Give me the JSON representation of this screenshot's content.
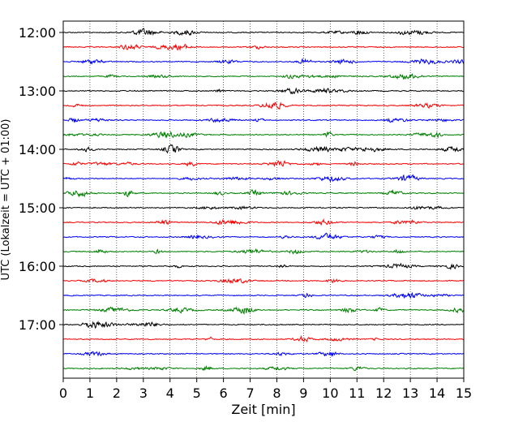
{
  "chart_data": {
    "type": "line",
    "title": "",
    "xlabel": "Zeit  [min]",
    "ylabel": "UTC (Lokalzeit = UTC + 01:00)",
    "xlim": [
      0,
      15
    ],
    "x_ticks": [
      "0",
      "1",
      "2",
      "3",
      "4",
      "5",
      "6",
      "7",
      "8",
      "9",
      "10",
      "11",
      "12",
      "13",
      "14",
      "15"
    ],
    "y_ticks": [
      "12:00",
      "13:00",
      "14:00",
      "15:00",
      "16:00",
      "17:00"
    ],
    "grid": "vertical dotted at each minute",
    "trace_interval_minutes": 15,
    "colors": [
      "#000000",
      "#ff0000",
      "#0000ff",
      "#008000"
    ],
    "traces": [
      {
        "start": "12:00",
        "color": "#000000"
      },
      {
        "start": "12:15",
        "color": "#ff0000"
      },
      {
        "start": "12:30",
        "color": "#0000ff"
      },
      {
        "start": "12:45",
        "color": "#008000"
      },
      {
        "start": "13:00",
        "color": "#000000"
      },
      {
        "start": "13:15",
        "color": "#ff0000"
      },
      {
        "start": "13:30",
        "color": "#0000ff"
      },
      {
        "start": "13:45",
        "color": "#008000"
      },
      {
        "start": "14:00",
        "color": "#000000"
      },
      {
        "start": "14:15",
        "color": "#ff0000"
      },
      {
        "start": "14:30",
        "color": "#0000ff"
      },
      {
        "start": "14:45",
        "color": "#008000"
      },
      {
        "start": "15:00",
        "color": "#000000"
      },
      {
        "start": "15:15",
        "color": "#ff0000"
      },
      {
        "start": "15:30",
        "color": "#0000ff"
      },
      {
        "start": "15:45",
        "color": "#008000"
      },
      {
        "start": "16:00",
        "color": "#000000"
      },
      {
        "start": "16:15",
        "color": "#ff0000"
      },
      {
        "start": "16:30",
        "color": "#0000ff"
      },
      {
        "start": "16:45",
        "color": "#008000"
      },
      {
        "start": "17:00",
        "color": "#000000"
      },
      {
        "start": "17:15",
        "color": "#ff0000"
      },
      {
        "start": "17:30",
        "color": "#0000ff"
      },
      {
        "start": "17:45",
        "color": "#008000"
      }
    ]
  }
}
